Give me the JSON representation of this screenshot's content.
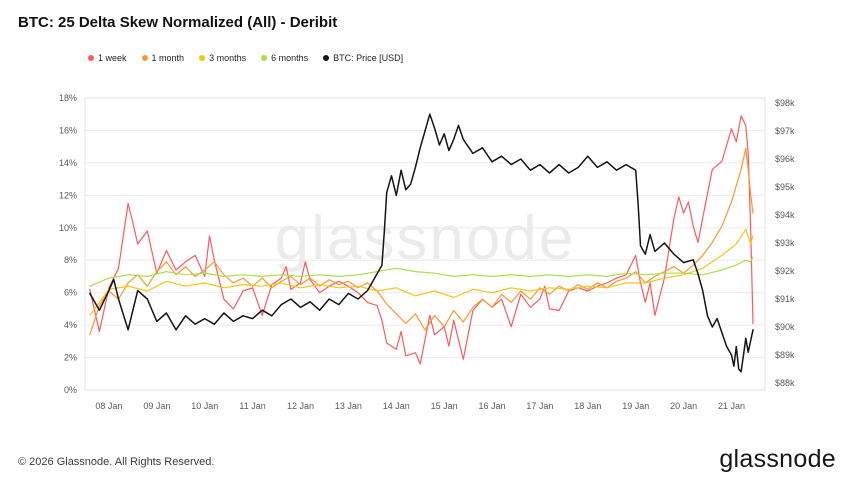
{
  "header": {
    "title": "BTC: 25 Delta Skew Normalized (All) - Deribit"
  },
  "legend": [
    {
      "label": "1 week",
      "color": "#fa5a60"
    },
    {
      "label": "1 month",
      "color": "#ff9532"
    },
    {
      "label": "3 months",
      "color": "#f5c518"
    },
    {
      "label": "6 months",
      "color": "#a8e04a"
    },
    {
      "label": "BTC: Price [USD]",
      "color": "#141414"
    }
  ],
  "watermark": "glassnode",
  "footer": {
    "copyright": "© 2026 Glassnode. All Rights Reserved.",
    "logo": "glassnode"
  },
  "chart_data": {
    "type": "line",
    "title": "BTC: 25 Delta Skew Normalized (All) - Deribit",
    "x_unit": "date (January)",
    "grid": "horizontal",
    "legend_position": "top-left",
    "x_ticks": [
      8,
      9,
      10,
      11,
      12,
      13,
      14,
      15,
      16,
      17,
      18,
      19,
      20,
      21
    ],
    "x_tick_labels": [
      "08 Jan",
      "09 Jan",
      "10 Jan",
      "11 Jan",
      "12 Jan",
      "13 Jan",
      "14 Jan",
      "15 Jan",
      "16 Jan",
      "17 Jan",
      "18 Jan",
      "19 Jan",
      "20 Jan",
      "21 Jan"
    ],
    "left_axis": {
      "min": 0,
      "max": 18,
      "tick_values": [
        0,
        2,
        4,
        6,
        8,
        10,
        12,
        14,
        16,
        18
      ],
      "tick_labels": [
        "0%",
        "2%",
        "4%",
        "6%",
        "8%",
        "10%",
        "12%",
        "14%",
        "16%",
        "18%"
      ]
    },
    "right_axis": {
      "min": 88,
      "max": 98,
      "tick_values": [
        88,
        89,
        90,
        91,
        92,
        93,
        94,
        95,
        96,
        97,
        98
      ],
      "tick_labels": [
        "$88k",
        "$89k",
        "$90k",
        "$91k",
        "$92k",
        "$93k",
        "$94k",
        "$95k",
        "$96k",
        "$97k",
        "$98k"
      ]
    },
    "series": [
      {
        "name": "1 week",
        "axis": "left",
        "color": "#fa5a60",
        "unit": "%",
        "x": [
          7.6,
          7.8,
          8.0,
          8.2,
          8.4,
          8.5,
          8.6,
          8.8,
          9.0,
          9.2,
          9.4,
          9.6,
          9.8,
          10.0,
          10.1,
          10.2,
          10.4,
          10.6,
          10.8,
          11.0,
          11.2,
          11.4,
          11.6,
          11.7,
          11.8,
          12.0,
          12.1,
          12.2,
          12.4,
          12.6,
          12.8,
          13.0,
          13.2,
          13.4,
          13.6,
          13.7,
          13.8,
          14.0,
          14.1,
          14.2,
          14.4,
          14.5,
          14.6,
          14.7,
          14.8,
          15.0,
          15.1,
          15.2,
          15.4,
          15.5,
          15.6,
          15.8,
          16.0,
          16.2,
          16.4,
          16.6,
          16.8,
          17.0,
          17.1,
          17.2,
          17.4,
          17.6,
          17.8,
          18.0,
          18.2,
          18.4,
          18.6,
          18.8,
          19.0,
          19.1,
          19.2,
          19.3,
          19.4,
          19.6,
          19.8,
          19.9,
          20.0,
          20.1,
          20.2,
          20.3,
          20.4,
          20.6,
          20.8,
          21.0,
          21.1,
          21.2,
          21.3,
          21.35,
          21.4,
          21.45
        ],
        "y": [
          6.2,
          3.6,
          6.3,
          7.5,
          11.5,
          10.3,
          9.0,
          9.8,
          7.2,
          8.6,
          7.4,
          7.9,
          8.3,
          7.0,
          9.5,
          8.0,
          5.6,
          5.0,
          6.1,
          6.3,
          4.6,
          6.5,
          6.9,
          7.6,
          6.2,
          6.6,
          7.9,
          6.8,
          6.0,
          6.4,
          6.7,
          6.4,
          6.0,
          5.4,
          5.2,
          4.3,
          2.9,
          2.5,
          3.6,
          2.1,
          2.3,
          1.6,
          3.1,
          4.6,
          3.4,
          3.9,
          2.7,
          4.3,
          1.9,
          3.4,
          4.9,
          5.6,
          5.1,
          5.6,
          3.9,
          5.9,
          5.1,
          5.6,
          6.4,
          5.0,
          4.9,
          6.1,
          6.3,
          6.1,
          6.4,
          6.6,
          6.9,
          7.1,
          8.3,
          6.6,
          5.4,
          6.6,
          4.6,
          6.9,
          10.6,
          11.9,
          10.9,
          11.6,
          10.1,
          9.1,
          10.6,
          13.6,
          14.1,
          16.1,
          15.3,
          16.9,
          16.3,
          14.6,
          10.1,
          4.1
        ]
      },
      {
        "name": "1 month",
        "axis": "left",
        "color": "#ff9532",
        "unit": "%",
        "x": [
          7.6,
          7.8,
          8.0,
          8.2,
          8.4,
          8.6,
          8.8,
          9.0,
          9.2,
          9.4,
          9.6,
          9.8,
          10.0,
          10.2,
          10.4,
          10.6,
          10.8,
          11.0,
          11.2,
          11.4,
          11.6,
          11.8,
          12.0,
          12.2,
          12.4,
          12.6,
          12.8,
          13.0,
          13.2,
          13.4,
          13.6,
          13.8,
          14.0,
          14.2,
          14.4,
          14.6,
          14.8,
          15.0,
          15.2,
          15.4,
          15.6,
          15.8,
          16.0,
          16.2,
          16.4,
          16.6,
          16.8,
          17.0,
          17.2,
          17.4,
          17.6,
          17.8,
          18.0,
          18.2,
          18.4,
          18.6,
          18.8,
          19.0,
          19.2,
          19.4,
          19.6,
          19.8,
          20.0,
          20.2,
          20.4,
          20.6,
          20.8,
          21.0,
          21.1,
          21.2,
          21.3,
          21.35,
          21.4,
          21.45
        ],
        "y": [
          3.4,
          5.2,
          6.1,
          5.6,
          6.6,
          7.1,
          6.4,
          7.3,
          7.9,
          7.1,
          7.6,
          7.0,
          7.4,
          7.9,
          7.1,
          6.6,
          6.9,
          6.4,
          6.9,
          6.3,
          6.7,
          7.0,
          6.5,
          6.9,
          6.4,
          6.8,
          6.5,
          6.7,
          6.3,
          6.6,
          6.1,
          5.3,
          4.7,
          4.1,
          4.7,
          3.7,
          4.6,
          3.9,
          4.9,
          4.2,
          5.1,
          5.6,
          5.1,
          5.9,
          5.4,
          6.1,
          5.6,
          6.3,
          5.9,
          6.4,
          6.1,
          6.5,
          6.2,
          6.6,
          6.3,
          6.7,
          6.9,
          7.3,
          6.6,
          7.0,
          7.3,
          7.6,
          7.2,
          7.7,
          8.3,
          9.1,
          10.1,
          11.6,
          12.6,
          13.6,
          14.9,
          13.6,
          12.1,
          10.9
        ]
      },
      {
        "name": "3 months",
        "axis": "left",
        "color": "#f5c518",
        "unit": "%",
        "x": [
          7.6,
          8.0,
          8.4,
          8.8,
          9.2,
          9.6,
          10.0,
          10.4,
          10.8,
          11.2,
          11.6,
          12.0,
          12.4,
          12.8,
          13.2,
          13.6,
          14.0,
          14.4,
          14.8,
          15.2,
          15.6,
          16.0,
          16.4,
          16.8,
          17.2,
          17.6,
          18.0,
          18.4,
          18.8,
          19.2,
          19.6,
          20.0,
          20.4,
          20.8,
          21.1,
          21.3,
          21.4,
          21.45
        ],
        "y": [
          4.6,
          6.2,
          6.4,
          6.1,
          6.7,
          6.4,
          6.6,
          6.3,
          6.5,
          6.4,
          6.6,
          6.3,
          6.5,
          6.3,
          6.4,
          6.1,
          6.3,
          5.8,
          6.1,
          5.7,
          6.2,
          6.0,
          6.3,
          6.1,
          6.3,
          6.2,
          6.4,
          6.3,
          6.6,
          6.6,
          6.9,
          7.1,
          7.5,
          8.3,
          9.0,
          9.9,
          9.0,
          9.5
        ]
      },
      {
        "name": "6 months",
        "axis": "left",
        "color": "#a8e04a",
        "unit": "%",
        "x": [
          7.6,
          8.0,
          8.4,
          8.8,
          9.2,
          9.6,
          10.0,
          10.4,
          10.8,
          11.2,
          11.6,
          12.0,
          12.4,
          12.8,
          13.2,
          13.6,
          14.0,
          14.4,
          14.8,
          15.2,
          15.6,
          16.0,
          16.4,
          16.8,
          17.2,
          17.6,
          18.0,
          18.4,
          18.8,
          19.2,
          19.6,
          20.0,
          20.4,
          20.8,
          21.1,
          21.3,
          21.4,
          21.45
        ],
        "y": [
          6.4,
          6.9,
          7.1,
          7.0,
          7.3,
          7.1,
          7.2,
          7.0,
          7.1,
          7.0,
          7.1,
          7.0,
          7.1,
          7.0,
          7.1,
          7.3,
          7.5,
          7.3,
          7.2,
          7.0,
          7.1,
          7.0,
          7.1,
          7.0,
          7.1,
          7.0,
          7.1,
          7.0,
          7.2,
          7.1,
          7.2,
          7.2,
          7.1,
          7.4,
          7.7,
          8.0,
          7.9,
          8.2
        ]
      },
      {
        "name": "BTC: Price [USD]",
        "axis": "right",
        "color": "#141414",
        "unit": "$k",
        "x": [
          7.6,
          7.8,
          8.0,
          8.1,
          8.2,
          8.4,
          8.5,
          8.6,
          8.8,
          9.0,
          9.2,
          9.4,
          9.6,
          9.8,
          10.0,
          10.2,
          10.4,
          10.6,
          10.8,
          11.0,
          11.2,
          11.4,
          11.6,
          11.8,
          12.0,
          12.2,
          12.4,
          12.6,
          12.8,
          13.0,
          13.2,
          13.4,
          13.6,
          13.7,
          13.75,
          13.8,
          13.9,
          14.0,
          14.1,
          14.2,
          14.3,
          14.4,
          14.5,
          14.6,
          14.7,
          14.8,
          14.9,
          15.0,
          15.1,
          15.2,
          15.3,
          15.4,
          15.6,
          15.8,
          16.0,
          16.2,
          16.4,
          16.6,
          16.8,
          17.0,
          17.2,
          17.4,
          17.6,
          17.8,
          18.0,
          18.2,
          18.4,
          18.6,
          18.8,
          19.0,
          19.05,
          19.1,
          19.2,
          19.3,
          19.4,
          19.6,
          19.8,
          20.0,
          20.2,
          20.3,
          20.4,
          20.5,
          20.6,
          20.7,
          20.8,
          20.9,
          21.0,
          21.05,
          21.1,
          21.15,
          21.2,
          21.25,
          21.3,
          21.35,
          21.4,
          21.45
        ],
        "y": [
          91.2,
          90.6,
          91.3,
          91.7,
          91.0,
          89.9,
          90.6,
          91.3,
          91.0,
          90.2,
          90.5,
          89.9,
          90.4,
          90.1,
          90.3,
          90.1,
          90.5,
          90.2,
          90.4,
          90.3,
          90.6,
          90.4,
          90.8,
          91.0,
          90.7,
          90.9,
          90.6,
          91.0,
          90.8,
          91.2,
          91.0,
          91.3,
          91.9,
          92.2,
          93.4,
          94.8,
          95.4,
          94.7,
          95.6,
          94.9,
          95.1,
          95.7,
          96.4,
          97.0,
          97.6,
          97.1,
          96.5,
          96.9,
          96.3,
          96.7,
          97.2,
          96.7,
          96.2,
          96.4,
          95.9,
          96.1,
          95.8,
          96.0,
          95.6,
          95.8,
          95.5,
          95.8,
          95.5,
          95.7,
          96.1,
          95.7,
          95.9,
          95.6,
          95.8,
          95.6,
          94.4,
          92.9,
          92.6,
          93.3,
          92.7,
          93.0,
          92.6,
          92.3,
          92.4,
          91.9,
          91.3,
          90.4,
          90.0,
          90.3,
          89.8,
          89.3,
          89.0,
          88.6,
          89.3,
          88.5,
          88.4,
          89.0,
          89.6,
          89.1,
          89.5,
          89.9
        ]
      }
    ]
  }
}
